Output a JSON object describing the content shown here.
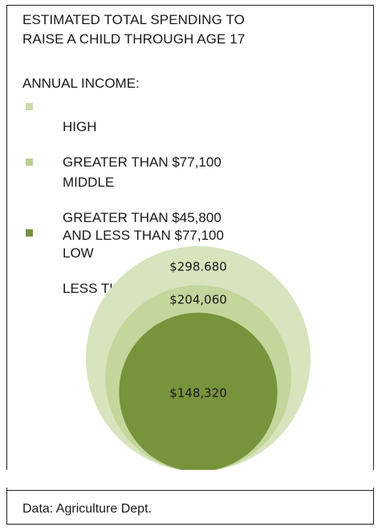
{
  "title": "ESTIMATED TOTAL SPENDING TO\nRAISE A CHILD THROUGH AGE 17",
  "income_label": "ANNUAL INCOME:",
  "legend": [
    {
      "name": "HIGH",
      "range": "GREATER THAN $77,100",
      "color": "#c9dba6"
    },
    {
      "name": "MIDDLE",
      "range": "GREATER THAN $45,800\nAND LESS THAN $77,100",
      "color": "#b7d08e"
    },
    {
      "name": "LOW",
      "range": "LESS THAN $45,800",
      "color": "#77933c"
    }
  ],
  "chart_data": {
    "type": "nested-circle",
    "title": "ESTIMATED TOTAL SPENDING TO RAISE A CHILD THROUGH AGE 17",
    "categories": [
      "HIGH",
      "MIDDLE",
      "LOW"
    ],
    "values": [
      298680,
      204060,
      148320
    ],
    "labels": [
      "$298.680",
      "$204,060",
      "$148,320"
    ],
    "colors": [
      "#d7e4bd",
      "#c3d69b",
      "#77933c"
    ]
  },
  "source": "Data: Agriculture Dept."
}
